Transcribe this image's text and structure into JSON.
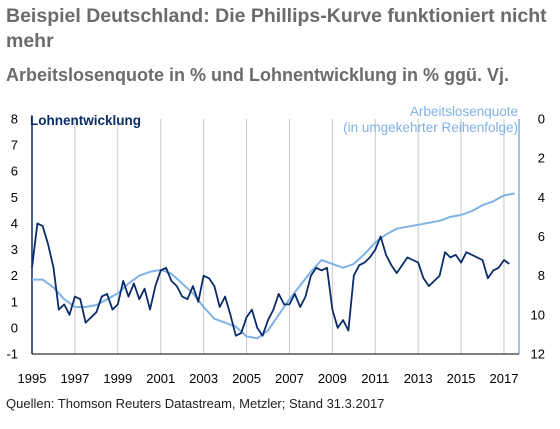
{
  "title": "Beispiel Deutschland: Die Phillips-Kurve funktioniert nicht mehr",
  "subtitle": "Arbeitslosenquote in % und Lohnentwicklung in % ggü. Vj.",
  "source": "Quellen: Thomson Reuters Datastream, Metzler; Stand 31.3.2017",
  "colors": {
    "wage": "#0a2d69",
    "unemployment": "#7fb2e6",
    "grid": "#c8c8c8",
    "axis": "#000000"
  },
  "chart_data": {
    "type": "line",
    "x_ticks": [
      "1995",
      "1997",
      "1999",
      "2001",
      "2003",
      "2005",
      "2007",
      "2009",
      "2011",
      "2013",
      "2015",
      "2017"
    ],
    "xlim": [
      1995,
      2017.7
    ],
    "left_axis": {
      "label": "Lohnentwicklung",
      "ylim": [
        -1,
        8
      ],
      "ticks": [
        "-1",
        "0",
        "1",
        "2",
        "3",
        "4",
        "5",
        "6",
        "7",
        "8"
      ]
    },
    "right_axis": {
      "label_line1": "Arbeitslosenquote",
      "label_line2": "(in umgekehrter Reihenfolge)",
      "ylim": [
        0,
        12
      ],
      "inverted": true,
      "ticks": [
        "0",
        "2",
        "4",
        "6",
        "8",
        "10",
        "12"
      ]
    },
    "grid": "vertical",
    "series": [
      {
        "name": "Lohnentwicklung",
        "axis": "left",
        "x": [
          1995.0,
          1995.25,
          1995.5,
          1995.75,
          1996.0,
          1996.25,
          1996.5,
          1996.75,
          1997.0,
          1997.25,
          1997.5,
          1997.75,
          1998.0,
          1998.25,
          1998.5,
          1998.75,
          1999.0,
          1999.25,
          1999.5,
          1999.75,
          2000.0,
          2000.25,
          2000.5,
          2000.75,
          2001.0,
          2001.25,
          2001.5,
          2001.75,
          2002.0,
          2002.25,
          2002.5,
          2002.75,
          2003.0,
          2003.25,
          2003.5,
          2003.75,
          2004.0,
          2004.25,
          2004.5,
          2004.75,
          2005.0,
          2005.25,
          2005.5,
          2005.75,
          2006.0,
          2006.25,
          2006.5,
          2006.75,
          2007.0,
          2007.25,
          2007.5,
          2007.75,
          2008.0,
          2008.25,
          2008.5,
          2008.75,
          2009.0,
          2009.25,
          2009.5,
          2009.75,
          2010.0,
          2010.25,
          2010.5,
          2010.75,
          2011.0,
          2011.25,
          2011.5,
          2011.75,
          2012.0,
          2012.25,
          2012.5,
          2012.75,
          2013.0,
          2013.25,
          2013.5,
          2013.75,
          2014.0,
          2014.25,
          2014.5,
          2014.75,
          2015.0,
          2015.25,
          2015.5,
          2015.75,
          2016.0,
          2016.25,
          2016.5,
          2016.75,
          2017.0,
          2017.25
        ],
        "values": [
          2.3,
          4.0,
          3.9,
          3.2,
          2.3,
          0.7,
          0.9,
          0.5,
          1.2,
          1.1,
          0.2,
          0.4,
          0.6,
          1.2,
          1.3,
          0.7,
          0.9,
          1.8,
          1.2,
          1.7,
          1.1,
          1.5,
          0.7,
          1.6,
          2.2,
          2.3,
          1.8,
          1.6,
          1.2,
          1.1,
          1.6,
          1.0,
          2.0,
          1.9,
          1.6,
          0.8,
          1.2,
          0.5,
          -0.3,
          -0.2,
          0.4,
          0.7,
          0.0,
          -0.3,
          0.3,
          0.7,
          1.3,
          0.9,
          0.9,
          1.3,
          0.8,
          1.2,
          2.0,
          2.3,
          2.2,
          2.3,
          0.7,
          0.0,
          0.3,
          -0.1,
          2.0,
          2.4,
          2.5,
          2.7,
          3.0,
          3.5,
          2.8,
          2.4,
          2.1,
          2.4,
          2.7,
          2.6,
          2.5,
          1.9,
          1.6,
          1.8,
          2.0,
          2.9,
          2.7,
          2.8,
          2.5,
          2.9,
          2.8,
          2.7,
          2.6,
          1.9,
          2.2,
          2.3,
          2.6,
          2.45
        ]
      },
      {
        "name": "Arbeitslosenquote",
        "axis": "right",
        "x": [
          1995.0,
          1995.5,
          1996.0,
          1996.5,
          1997.0,
          1997.5,
          1998.0,
          1998.5,
          1999.0,
          1999.5,
          2000.0,
          2000.5,
          2001.0,
          2001.5,
          2002.0,
          2002.5,
          2003.0,
          2003.5,
          2004.0,
          2004.5,
          2005.0,
          2005.5,
          2006.0,
          2006.5,
          2007.0,
          2007.5,
          2008.0,
          2008.5,
          2009.0,
          2009.5,
          2010.0,
          2010.5,
          2011.0,
          2011.5,
          2012.0,
          2012.5,
          2013.0,
          2013.5,
          2014.0,
          2014.5,
          2015.0,
          2015.5,
          2016.0,
          2016.5,
          2017.0,
          2017.5
        ],
        "values": [
          8.2,
          8.2,
          8.6,
          9.2,
          9.6,
          9.6,
          9.5,
          9.2,
          8.9,
          8.4,
          8.0,
          7.8,
          7.7,
          7.9,
          8.4,
          8.9,
          9.6,
          10.2,
          10.4,
          10.6,
          11.1,
          11.2,
          10.8,
          10.0,
          9.2,
          8.5,
          7.8,
          7.2,
          7.4,
          7.6,
          7.4,
          6.9,
          6.3,
          5.9,
          5.6,
          5.5,
          5.4,
          5.3,
          5.2,
          5.0,
          4.9,
          4.7,
          4.4,
          4.2,
          3.9,
          3.8
        ]
      }
    ]
  }
}
